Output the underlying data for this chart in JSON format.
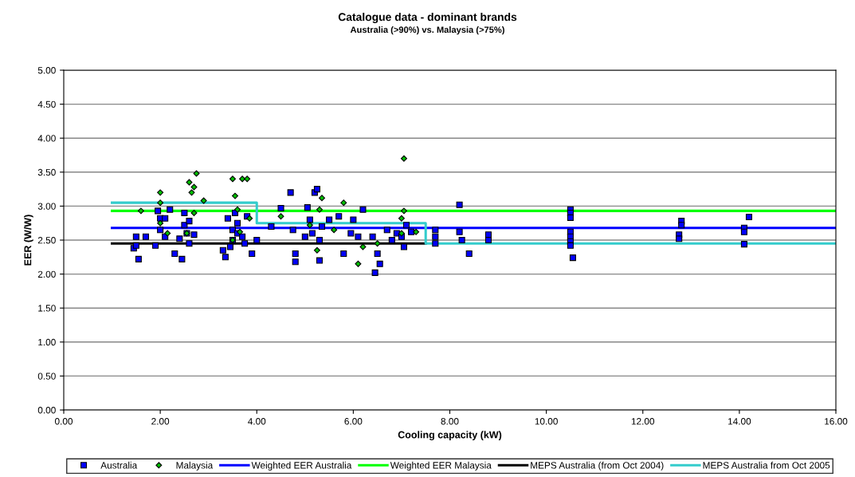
{
  "chart_data": {
    "type": "scatter",
    "title": "Catalogue data - dominant brands",
    "subtitle": "Australia (>90%) vs. Malaysia (>75%)",
    "xlabel": "Cooling capacity (kW)",
    "ylabel": "EER (W/W)",
    "xlim": [
      0,
      16
    ],
    "ylim": [
      0,
      5
    ],
    "xticks": [
      {
        "value": 0,
        "label": "0.00"
      },
      {
        "value": 2,
        "label": "2.00"
      },
      {
        "value": 4,
        "label": "4.00"
      },
      {
        "value": 6,
        "label": "6.00"
      },
      {
        "value": 8,
        "label": "8.00"
      },
      {
        "value": 10,
        "label": "10.00"
      },
      {
        "value": 12,
        "label": "12.00"
      },
      {
        "value": 14,
        "label": "14.00"
      },
      {
        "value": 16,
        "label": "16.00"
      }
    ],
    "yticks": [
      {
        "value": 0,
        "label": "0.00"
      },
      {
        "value": 0.5,
        "label": "0.50"
      },
      {
        "value": 1,
        "label": "1.00"
      },
      {
        "value": 1.5,
        "label": "1.50"
      },
      {
        "value": 2,
        "label": "2.00"
      },
      {
        "value": 2.5,
        "label": "2.50"
      },
      {
        "value": 3,
        "label": "3.00"
      },
      {
        "value": 3.5,
        "label": "3.50"
      },
      {
        "value": 4,
        "label": "4.00"
      },
      {
        "value": 4.5,
        "label": "4.50"
      },
      {
        "value": 5,
        "label": "5.00"
      }
    ],
    "grid": "y",
    "legend": "bottom",
    "series": [
      {
        "name": "Australia",
        "color": "#0000ff",
        "marker": "square",
        "x": [
          1.45,
          1.5,
          1.5,
          1.55,
          1.7,
          1.9,
          1.95,
          2.0,
          2.0,
          2.1,
          2.1,
          2.2,
          2.3,
          2.4,
          2.45,
          2.5,
          2.5,
          2.55,
          2.6,
          2.7,
          2.6,
          3.3,
          3.35,
          3.4,
          3.45,
          3.5,
          3.5,
          3.55,
          3.6,
          3.6,
          3.7,
          3.75,
          3.8,
          3.9,
          4.0,
          4.3,
          4.5,
          4.7,
          4.75,
          4.8,
          4.8,
          5.0,
          5.05,
          5.1,
          5.15,
          5.2,
          5.25,
          5.3,
          5.3,
          5.35,
          5.5,
          5.7,
          5.8,
          5.95,
          6.0,
          6.1,
          6.2,
          6.4,
          6.45,
          6.5,
          6.55,
          6.7,
          6.8,
          6.9,
          7.0,
          7.05,
          7.1,
          7.2,
          7.7,
          7.7,
          7.7,
          8.2,
          8.2,
          8.25,
          8.4,
          8.8,
          8.8,
          10.5,
          10.5,
          10.5,
          10.5,
          10.5,
          10.5,
          10.5,
          10.55,
          12.8,
          12.8,
          12.75,
          12.75,
          14.1,
          14.1,
          14.1,
          14.2
        ],
        "values": [
          2.38,
          2.55,
          2.42,
          2.22,
          2.55,
          2.42,
          2.93,
          2.82,
          2.65,
          2.55,
          2.82,
          2.95,
          2.3,
          2.52,
          2.22,
          2.9,
          2.72,
          2.6,
          2.78,
          2.58,
          2.45,
          2.35,
          2.25,
          2.82,
          2.4,
          2.5,
          2.65,
          2.9,
          2.6,
          2.75,
          2.55,
          2.45,
          2.85,
          2.3,
          2.5,
          2.7,
          2.97,
          3.2,
          2.65,
          2.3,
          2.18,
          2.55,
          2.98,
          2.8,
          2.6,
          3.2,
          3.25,
          2.5,
          2.2,
          2.7,
          2.8,
          2.85,
          2.3,
          2.6,
          2.8,
          2.55,
          2.95,
          2.55,
          2.02,
          2.3,
          2.15,
          2.65,
          2.5,
          2.6,
          2.55,
          2.4,
          2.72,
          2.62,
          2.65,
          2.55,
          2.45,
          3.02,
          2.62,
          2.5,
          2.3,
          2.58,
          2.5,
          2.95,
          2.9,
          2.83,
          2.62,
          2.55,
          2.48,
          2.42,
          2.24,
          2.78,
          2.72,
          2.58,
          2.52,
          2.68,
          2.62,
          2.44,
          2.84
        ]
      },
      {
        "name": "Malaysia",
        "color": "#00c000",
        "marker": "diamond",
        "x": [
          1.6,
          2.0,
          2.0,
          2.0,
          2.15,
          2.55,
          2.6,
          2.65,
          2.7,
          2.75,
          2.9,
          2.7,
          3.5,
          3.55,
          3.6,
          3.7,
          3.8,
          3.65,
          3.5,
          3.85,
          4.5,
          5.1,
          5.35,
          5.3,
          5.25,
          5.6,
          5.8,
          6.2,
          6.1,
          7.05,
          7.05,
          7.0,
          7.0,
          7.3,
          6.5
        ],
        "values": [
          2.93,
          3.2,
          3.05,
          2.75,
          2.6,
          2.6,
          3.35,
          3.2,
          3.28,
          3.48,
          3.08,
          2.9,
          3.4,
          3.15,
          2.95,
          3.4,
          3.4,
          2.62,
          2.5,
          2.82,
          2.85,
          2.72,
          3.12,
          2.95,
          2.35,
          2.65,
          3.05,
          2.4,
          2.15,
          3.7,
          2.93,
          2.82,
          2.6,
          2.62,
          2.45
        ]
      },
      {
        "name": "Weighted EER Australia",
        "type": "line",
        "color": "#0000ff",
        "x": [
          1,
          16
        ],
        "values": [
          2.68,
          2.68
        ]
      },
      {
        "name": "Weighted EER Malaysia",
        "type": "line",
        "color": "#00ff00",
        "x": [
          1,
          16
        ],
        "values": [
          2.93,
          2.93
        ]
      },
      {
        "name": "MEPS Australia (from Oct 2004)",
        "type": "line",
        "color": "#000000",
        "x": [
          1,
          7.5
        ],
        "values": [
          2.45,
          2.45
        ]
      },
      {
        "name": "MEPS Australia from Oct 2005",
        "type": "step",
        "color": "#33cccc",
        "x": [
          1,
          4,
          7.5,
          16
        ],
        "values": [
          3.05,
          2.75,
          2.45,
          2.45
        ]
      }
    ]
  }
}
